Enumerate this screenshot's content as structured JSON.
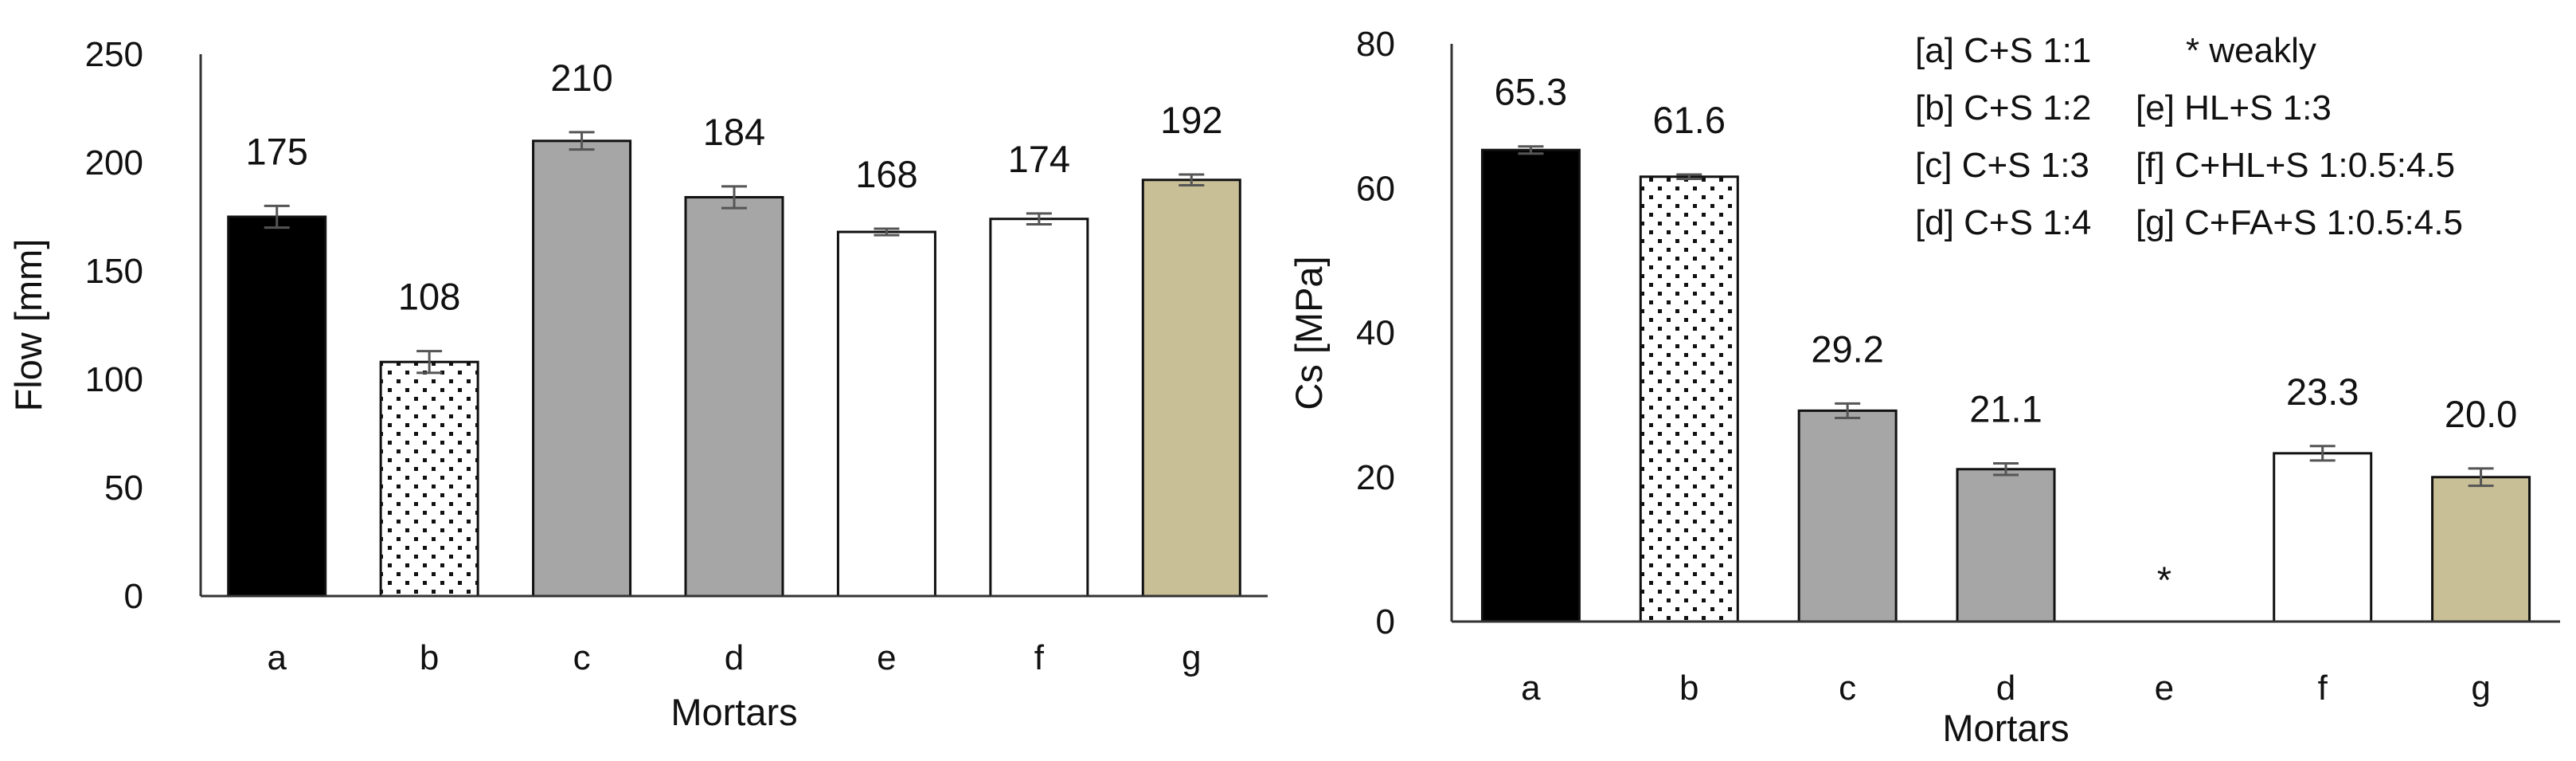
{
  "chart_data": [
    {
      "type": "bar",
      "xlabel": "Mortars",
      "ylabel": "Flow [mm]",
      "ylim": [
        0,
        250
      ],
      "yticks": [
        0,
        50,
        100,
        150,
        200,
        250
      ],
      "grid": false,
      "categories": [
        "a",
        "b",
        "c",
        "d",
        "e",
        "f",
        "g"
      ],
      "values": [
        175,
        108,
        210,
        184,
        168,
        174,
        192
      ],
      "data_labels": [
        "175",
        "108",
        "210",
        "184",
        "168",
        "174",
        "192"
      ],
      "errors": [
        5,
        5,
        4,
        5,
        1.5,
        2.5,
        2.5
      ],
      "fills": [
        "black",
        "dots",
        "#a6a6a6",
        "#a6a6a6",
        "white",
        "white",
        "#c9bf96"
      ]
    },
    {
      "type": "bar",
      "xlabel": "Mortars",
      "ylabel": "Cs [MPa]",
      "ylim": [
        0,
        80
      ],
      "yticks": [
        0,
        20,
        40,
        60,
        80
      ],
      "grid": false,
      "categories": [
        "a",
        "b",
        "c",
        "d",
        "e",
        "f",
        "g"
      ],
      "values": [
        65.3,
        61.6,
        29.2,
        21.1,
        null,
        23.3,
        20.0
      ],
      "data_labels": [
        "65.3",
        "61.6",
        "29.2",
        "21.1",
        "*",
        "23.3",
        "20.0"
      ],
      "errors": [
        0.5,
        0.3,
        1.0,
        0.8,
        0,
        1.0,
        1.2
      ],
      "fills": [
        "black",
        "dots",
        "#a6a6a6",
        "#a6a6a6",
        "white",
        "white",
        "#c9bf96"
      ],
      "legend": {
        "placement": "top-right",
        "rows": [
          [
            "[a] C+S 1:1",
            "*   weakly"
          ],
          [
            "[b] C+S 1:2",
            "[e] HL+S 1:3"
          ],
          [
            "[c] C+S 1:3",
            "[f] C+HL+S 1:0.5:4.5"
          ],
          [
            "[d] C+S 1:4",
            "[g] C+FA+S 1:0.5:4.5"
          ]
        ]
      }
    }
  ]
}
